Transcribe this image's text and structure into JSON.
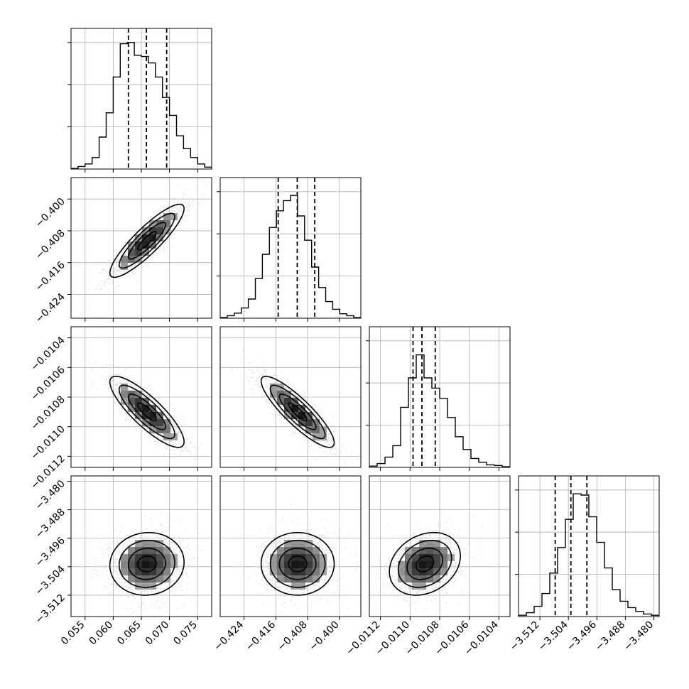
{
  "chart_data": {
    "type": "corner",
    "params": [
      {
        "range": [
          0.0525,
          0.0775
        ],
        "ticks": [
          "0.055",
          "0.060",
          "0.065",
          "0.070",
          "0.075"
        ],
        "tick_values": [
          0.055,
          0.06,
          0.065,
          0.07,
          0.075
        ],
        "quantiles": [
          0.0627,
          0.0659,
          0.0695
        ],
        "mean": 0.066,
        "sd": 0.0033,
        "hist": [
          0.5,
          2,
          4,
          9,
          25,
          44,
          72,
          98,
          99,
          89,
          88,
          83,
          72,
          56,
          42,
          26,
          16,
          9,
          4,
          1.5
        ],
        "hist_max": 100
      },
      {
        "range": [
          -0.43,
          -0.3946
        ],
        "ticks": [
          "−0.424",
          "−0.416",
          "−0.408",
          "−0.400"
        ],
        "tick_values": [
          -0.424,
          -0.416,
          -0.408,
          -0.4
        ],
        "quantiles": [
          -0.4154,
          -0.4106,
          -0.4062
        ],
        "mean": -0.4105,
        "sd": 0.0046,
        "hist": [
          0.5,
          2,
          4,
          8,
          15,
          31,
          50,
          71,
          84,
          92,
          96,
          80,
          61,
          40,
          24,
          13,
          7,
          3.5,
          2,
          0.5
        ],
        "hist_max": 100
      },
      {
        "range": [
          -0.011275,
          -0.010325
        ],
        "ticks": [
          "−0.0112",
          "−0.0110",
          "−0.0108",
          "−0.0106",
          "−0.0104"
        ],
        "tick_values": [
          -0.0112,
          -0.011,
          -0.0108,
          -0.0106,
          -0.0104
        ],
        "quantiles": [
          -0.01098,
          -0.01092,
          -0.01083
        ],
        "mean": -0.0109,
        "sd": 0.00012,
        "hist": [
          1,
          3,
          8,
          17,
          47,
          70,
          88,
          70,
          62,
          54,
          39,
          24,
          14,
          7,
          4,
          2,
          1.5,
          0.5
        ],
        "hist_max": 100
      },
      {
        "range": [
          -3.518,
          -3.4785
        ],
        "ticks": [
          "−3.512",
          "−3.504",
          "−3.496",
          "−3.488",
          "−3.480"
        ],
        "tick_values": [
          -3.512,
          -3.504,
          -3.496,
          -3.488,
          -3.48
        ],
        "quantiles": [
          -3.5077,
          -3.5033,
          -3.4988
        ],
        "mean": -3.5032,
        "sd": 0.0044,
        "hist": [
          1,
          3,
          8,
          18,
          34,
          54,
          76,
          96,
          95,
          78,
          58,
          38,
          21,
          12,
          7,
          4,
          2,
          1
        ],
        "hist_max": 100
      }
    ],
    "correlations": {
      "1,0": 0.88,
      "2,0": -0.84,
      "2,1": -0.87,
      "3,0": 0.05,
      "3,1": 0.0,
      "3,2": 0.25
    },
    "contour_levels_sigma": [
      0.5,
      1.0,
      1.5,
      2.0
    ],
    "grid": true,
    "colors": {
      "line": "#000000",
      "scatter": "#b3b3b3",
      "grid": "#b0b0b0"
    }
  }
}
